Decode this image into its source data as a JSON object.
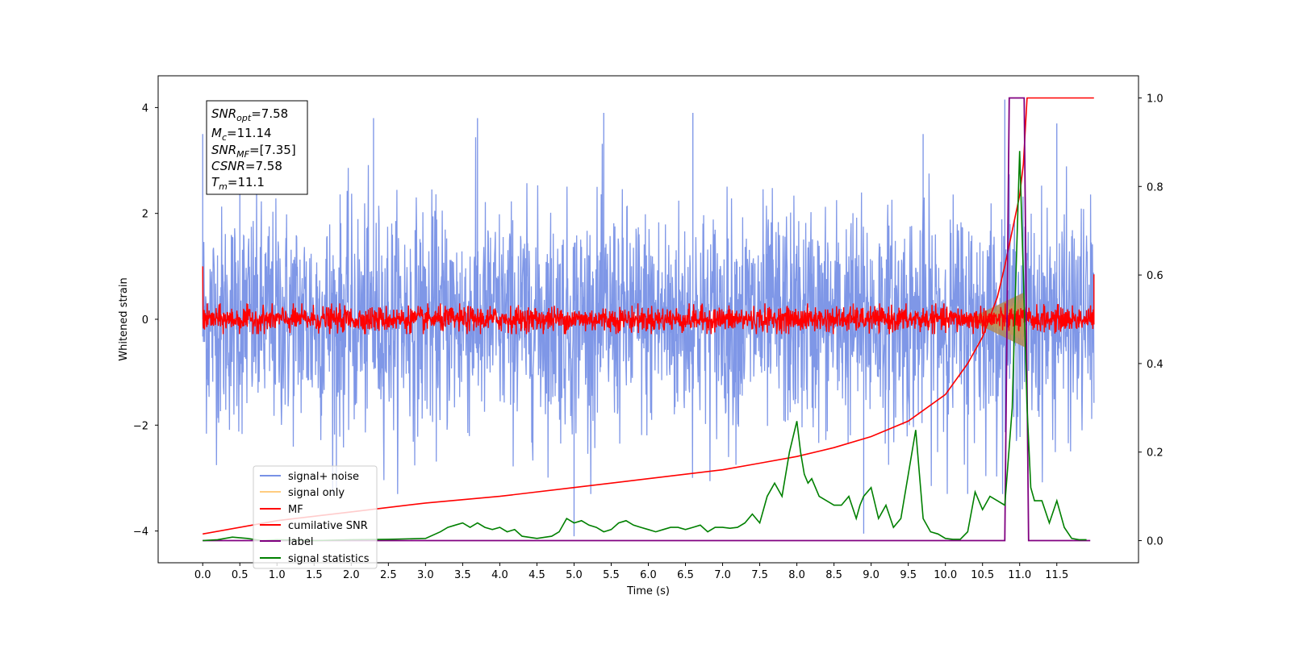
{
  "chart_data": {
    "type": "line",
    "xlabel": "Time (s)",
    "ylabel_left": "Whitened strain",
    "xlim": [
      -0.6,
      12.6
    ],
    "ylim_left": [
      -4.6,
      4.6
    ],
    "ylim_right": [
      -0.05,
      1.05
    ],
    "x_ticks": [
      "0.0",
      "0.5",
      "1.0",
      "1.5",
      "2.0",
      "2.5",
      "3.0",
      "3.5",
      "4.0",
      "4.5",
      "5.0",
      "5.5",
      "6.0",
      "6.5",
      "7.0",
      "7.5",
      "8.0",
      "8.5",
      "9.0",
      "9.5",
      "10.0",
      "10.5",
      "11.0",
      "11.5"
    ],
    "y_ticks_left": [
      "−4",
      "−2",
      "0",
      "2",
      "4"
    ],
    "y_ticks_right": [
      "0.0",
      "0.2",
      "0.4",
      "0.6",
      "0.8",
      "1.0"
    ],
    "info_box": {
      "snr_opt": {
        "base": "SNR",
        "sub": "opt",
        "value": "=7.58"
      },
      "mc": {
        "base": "M",
        "sub": "c",
        "value": "=11.14"
      },
      "snr_mf": {
        "base": "SNR",
        "sub": "MF",
        "value": "=[7.35]"
      },
      "csnr": {
        "base": "CSNR",
        "value": "=7.58"
      },
      "tm": {
        "base": "T",
        "sub": "m",
        "value": "=11.1"
      }
    },
    "legend": {
      "placement": "lower-left",
      "entries": [
        {
          "label": "signal+ noise",
          "color": "#7891e6"
        },
        {
          "label": "signal only",
          "color": "#ffcc80"
        },
        {
          "label": "MF",
          "color": "#ff0000"
        },
        {
          "label": "cumilative SNR",
          "color": "#ff0000"
        },
        {
          "label": "label",
          "color": "#800080"
        },
        {
          "label": "signal statistics",
          "color": "#008000"
        }
      ]
    },
    "series": [
      {
        "name": "signal+ noise",
        "axis": "left",
        "color": "#7891e6",
        "x_range": [
          0.0,
          12.0
        ],
        "envelope": [
          -2.4,
          2.4
        ],
        "peak_max": 4.15,
        "peak_min": -4.1
      },
      {
        "name": "signal only",
        "axis": "left",
        "color": "#ffcc80",
        "x_range": [
          10.3,
          11.1
        ],
        "amplitude_end": 0.45
      },
      {
        "name": "MF",
        "axis": "left",
        "color": "#ff0000",
        "x_range": [
          0.0,
          12.0
        ],
        "envelope": [
          -0.2,
          0.2
        ],
        "start_value": 1.0,
        "end_value": 0.85
      },
      {
        "name": "cumilative SNR",
        "axis": "right",
        "color": "#ff0000",
        "x": [
          0.0,
          1.0,
          2.0,
          3.0,
          4.0,
          5.0,
          6.0,
          7.0,
          7.5,
          8.0,
          8.5,
          9.0,
          9.5,
          10.0,
          10.3,
          10.5,
          10.7,
          10.8,
          10.9,
          11.0,
          11.05,
          11.1,
          12.0
        ],
        "y": [
          0.015,
          0.045,
          0.065,
          0.085,
          0.1,
          0.12,
          0.14,
          0.16,
          0.175,
          0.19,
          0.21,
          0.235,
          0.27,
          0.33,
          0.4,
          0.46,
          0.55,
          0.62,
          0.7,
          0.78,
          0.85,
          1.0,
          1.0
        ]
      },
      {
        "name": "label",
        "axis": "right",
        "color": "#800080",
        "x": [
          0.0,
          10.8,
          10.86,
          11.06,
          11.12,
          11.95
        ],
        "y": [
          0.0,
          0.0,
          1.0,
          1.0,
          0.0,
          0.0
        ]
      },
      {
        "name": "signal statistics",
        "axis": "right",
        "color": "#008000",
        "x": [
          0.0,
          0.2,
          0.4,
          0.6,
          0.8,
          1.0,
          1.5,
          2.0,
          2.5,
          3.0,
          3.2,
          3.3,
          3.4,
          3.5,
          3.6,
          3.7,
          3.8,
          3.9,
          4.0,
          4.1,
          4.2,
          4.3,
          4.5,
          4.7,
          4.8,
          4.9,
          5.0,
          5.1,
          5.2,
          5.3,
          5.4,
          5.5,
          5.6,
          5.7,
          5.8,
          5.9,
          6.0,
          6.1,
          6.2,
          6.3,
          6.4,
          6.5,
          6.6,
          6.7,
          6.8,
          6.9,
          7.0,
          7.1,
          7.2,
          7.3,
          7.4,
          7.5,
          7.6,
          7.7,
          7.8,
          7.9,
          8.0,
          8.05,
          8.1,
          8.15,
          8.2,
          8.3,
          8.4,
          8.5,
          8.6,
          8.7,
          8.8,
          8.85,
          8.9,
          9.0,
          9.1,
          9.2,
          9.3,
          9.4,
          9.5,
          9.6,
          9.65,
          9.7,
          9.8,
          9.9,
          10.0,
          10.1,
          10.2,
          10.3,
          10.4,
          10.5,
          10.6,
          10.7,
          10.8,
          10.9,
          10.95,
          11.0,
          11.05,
          11.1,
          11.15,
          11.2,
          11.3,
          11.4,
          11.5,
          11.6,
          11.7,
          11.8,
          11.9
        ],
        "y": [
          0.0,
          0.002,
          0.008,
          0.005,
          0.0,
          0.002,
          0.0,
          0.002,
          0.003,
          0.005,
          0.02,
          0.03,
          0.035,
          0.04,
          0.03,
          0.04,
          0.03,
          0.025,
          0.03,
          0.02,
          0.025,
          0.01,
          0.005,
          0.01,
          0.02,
          0.05,
          0.04,
          0.045,
          0.035,
          0.03,
          0.02,
          0.025,
          0.04,
          0.045,
          0.035,
          0.03,
          0.025,
          0.02,
          0.025,
          0.03,
          0.03,
          0.025,
          0.03,
          0.035,
          0.02,
          0.03,
          0.03,
          0.028,
          0.03,
          0.04,
          0.06,
          0.04,
          0.1,
          0.13,
          0.1,
          0.2,
          0.27,
          0.2,
          0.15,
          0.13,
          0.14,
          0.1,
          0.09,
          0.08,
          0.08,
          0.1,
          0.05,
          0.08,
          0.1,
          0.12,
          0.05,
          0.08,
          0.03,
          0.05,
          0.15,
          0.25,
          0.15,
          0.05,
          0.02,
          0.015,
          0.005,
          0.003,
          0.003,
          0.02,
          0.11,
          0.07,
          0.1,
          0.09,
          0.08,
          0.3,
          0.6,
          0.88,
          0.6,
          0.3,
          0.12,
          0.09,
          0.09,
          0.04,
          0.09,
          0.03,
          0.005,
          0.002,
          0.002
        ]
      }
    ]
  }
}
